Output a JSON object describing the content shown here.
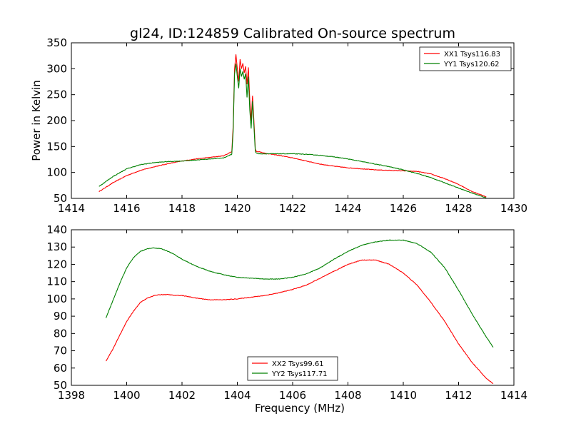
{
  "title": "gl24, ID:124859 Calibrated On-source spectrum",
  "colors": {
    "red": "#ff0000",
    "green": "#008000"
  },
  "chart_data": [
    {
      "type": "line",
      "title": "gl24, ID:124859 Calibrated On-source spectrum",
      "xlabel": "",
      "ylabel": "Power in Kelvin",
      "xlim": [
        1414,
        1430
      ],
      "ylim": [
        50,
        350
      ],
      "xticks": [
        1414,
        1416,
        1418,
        1420,
        1422,
        1424,
        1426,
        1428,
        1430
      ],
      "yticks": [
        50,
        100,
        150,
        200,
        250,
        300,
        350
      ],
      "legend": "top-right",
      "series": [
        {
          "name": "XX1 Tsys116.83",
          "color": "#ff0000",
          "x": [
            1415.0,
            1415.5,
            1416.0,
            1416.5,
            1417.0,
            1417.5,
            1418.0,
            1418.5,
            1419.0,
            1419.5,
            1419.8,
            1419.85,
            1419.9,
            1419.95,
            1420.0,
            1420.05,
            1420.1,
            1420.15,
            1420.2,
            1420.25,
            1420.3,
            1420.35,
            1420.4,
            1420.45,
            1420.5,
            1420.55,
            1420.6,
            1420.65,
            1420.7,
            1420.8,
            1421.0,
            1421.5,
            1422.0,
            1422.5,
            1423.0,
            1423.5,
            1424.0,
            1424.5,
            1425.0,
            1425.5,
            1426.0,
            1426.5,
            1427.0,
            1427.5,
            1428.0,
            1428.5,
            1429.0
          ],
          "y": [
            63,
            80,
            94,
            104,
            111,
            117,
            122,
            126,
            129,
            132,
            140,
            190,
            300,
            328,
            300,
            275,
            318,
            300,
            310,
            292,
            305,
            270,
            303,
            240,
            200,
            248,
            200,
            145,
            140,
            140,
            137,
            133,
            128,
            122,
            116,
            112,
            109,
            107,
            105,
            104,
            103,
            102,
            97,
            88,
            77,
            63,
            53
          ]
        },
        {
          "name": "YY1 Tsys120.62",
          "color": "#008000",
          "x": [
            1415.0,
            1415.5,
            1416.0,
            1416.5,
            1417.0,
            1417.5,
            1418.0,
            1418.5,
            1419.0,
            1419.5,
            1419.8,
            1419.85,
            1419.9,
            1419.95,
            1420.0,
            1420.05,
            1420.1,
            1420.15,
            1420.2,
            1420.25,
            1420.3,
            1420.35,
            1420.4,
            1420.45,
            1420.5,
            1420.55,
            1420.6,
            1420.65,
            1420.7,
            1420.8,
            1421.0,
            1421.5,
            1422.0,
            1422.5,
            1423.0,
            1423.5,
            1424.0,
            1424.5,
            1425.0,
            1425.5,
            1426.0,
            1426.5,
            1427.0,
            1427.5,
            1428.0,
            1428.5,
            1429.0
          ],
          "y": [
            73,
            92,
            107,
            115,
            119,
            121,
            122,
            124,
            126,
            128,
            135,
            180,
            290,
            310,
            285,
            262,
            300,
            285,
            295,
            280,
            290,
            245,
            285,
            220,
            185,
            237,
            190,
            140,
            137,
            136,
            136,
            136,
            136,
            135,
            133,
            130,
            126,
            121,
            116,
            111,
            105,
            98,
            90,
            80,
            70,
            60,
            51
          ]
        }
      ]
    },
    {
      "type": "line",
      "title": "",
      "xlabel": "Frequency (MHz)",
      "ylabel": "",
      "xlim": [
        1398,
        1414
      ],
      "ylim": [
        50,
        140
      ],
      "xticks": [
        1398,
        1400,
        1402,
        1404,
        1406,
        1408,
        1410,
        1412,
        1414
      ],
      "yticks": [
        50,
        60,
        70,
        80,
        90,
        100,
        110,
        120,
        130,
        140
      ],
      "legend": "bottom-center",
      "series": [
        {
          "name": "XX2 Tsys99.61",
          "color": "#ff0000",
          "x": [
            1399.25,
            1399.5,
            1399.75,
            1400.0,
            1400.25,
            1400.5,
            1400.75,
            1401.0,
            1401.25,
            1401.5,
            1401.75,
            1402.0,
            1402.5,
            1403.0,
            1403.5,
            1404.0,
            1404.5,
            1405.0,
            1405.5,
            1406.0,
            1406.5,
            1407.0,
            1407.5,
            1408.0,
            1408.5,
            1409.0,
            1409.5,
            1410.0,
            1410.5,
            1411.0,
            1411.5,
            1412.0,
            1412.5,
            1413.0,
            1413.25
          ],
          "y": [
            64,
            71,
            79,
            87,
            93,
            98,
            100.5,
            102,
            102.5,
            102.5,
            102,
            102,
            100.5,
            99.5,
            99.5,
            100,
            101,
            102,
            103.5,
            105.5,
            108,
            112,
            116,
            120,
            122.5,
            122.5,
            120,
            115,
            108,
            98,
            87,
            74,
            63,
            54,
            51
          ]
        },
        {
          "name": "YY2 Tsys117.71",
          "color": "#008000",
          "x": [
            1399.25,
            1399.5,
            1399.75,
            1400.0,
            1400.25,
            1400.5,
            1400.75,
            1401.0,
            1401.25,
            1401.5,
            1401.75,
            1402.0,
            1402.5,
            1403.0,
            1403.5,
            1404.0,
            1404.5,
            1405.0,
            1405.5,
            1406.0,
            1406.5,
            1407.0,
            1407.5,
            1408.0,
            1408.5,
            1409.0,
            1409.5,
            1410.0,
            1410.5,
            1411.0,
            1411.5,
            1412.0,
            1412.5,
            1413.0,
            1413.25
          ],
          "y": [
            89,
            99,
            109,
            118,
            124,
            127.5,
            129,
            129.5,
            129,
            127.5,
            125.5,
            123,
            119,
            116,
            114,
            112.5,
            112,
            111.5,
            111.5,
            112.5,
            114.5,
            118,
            123,
            127.5,
            131,
            133,
            134,
            134,
            132,
            127,
            118,
            105,
            91,
            78,
            72
          ]
        }
      ]
    }
  ]
}
